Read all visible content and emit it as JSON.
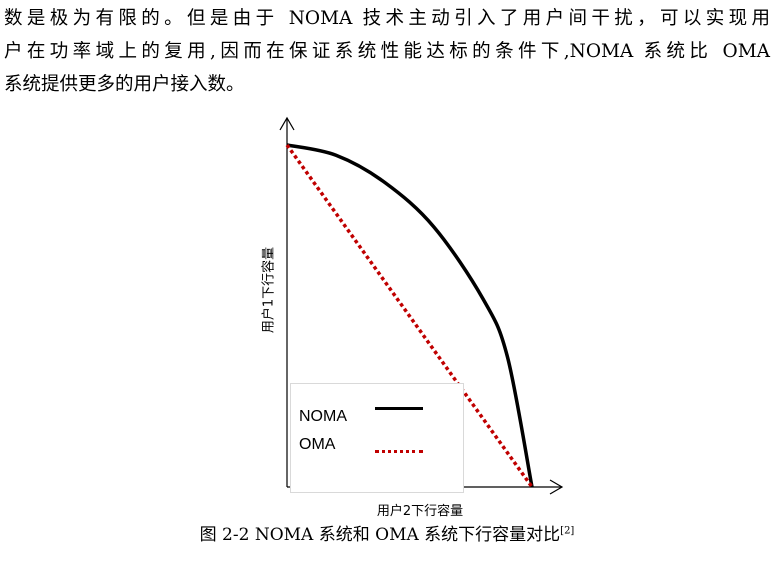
{
  "paragraph": {
    "line1": "数是极为有限的。但是由于 NOMA 技术主动引入了用户间干扰，可以实现用",
    "line2": "户在功率域上的复用,因而在保证系统性能达标的条件下,NOMA 系统比 OMA",
    "line3": "系统提供更多的用户接入数。"
  },
  "figure": {
    "caption": "图 2-2 NOMA 系统和 OMA 系统下行容量对比",
    "citation": "[2]"
  },
  "chart_data": {
    "type": "line",
    "xlabel": "用户2下行容量",
    "ylabel": "用户1下行容量",
    "xlim": [
      0,
      1
    ],
    "ylim": [
      0,
      1
    ],
    "ticks": "none",
    "grid": false,
    "legend": {
      "position": "bottom-left"
    },
    "series": [
      {
        "name": "NOMA",
        "style": "solid",
        "color": "#000000",
        "x": [
          0,
          0.2,
          0.4,
          0.6,
          0.8,
          0.9,
          1.0
        ],
        "y": [
          1,
          0.97,
          0.89,
          0.76,
          0.55,
          0.38,
          0
        ]
      },
      {
        "name": "OMA",
        "style": "dashed",
        "color": "#c00000",
        "x": [
          0,
          1
        ],
        "y": [
          1,
          0
        ]
      }
    ]
  }
}
